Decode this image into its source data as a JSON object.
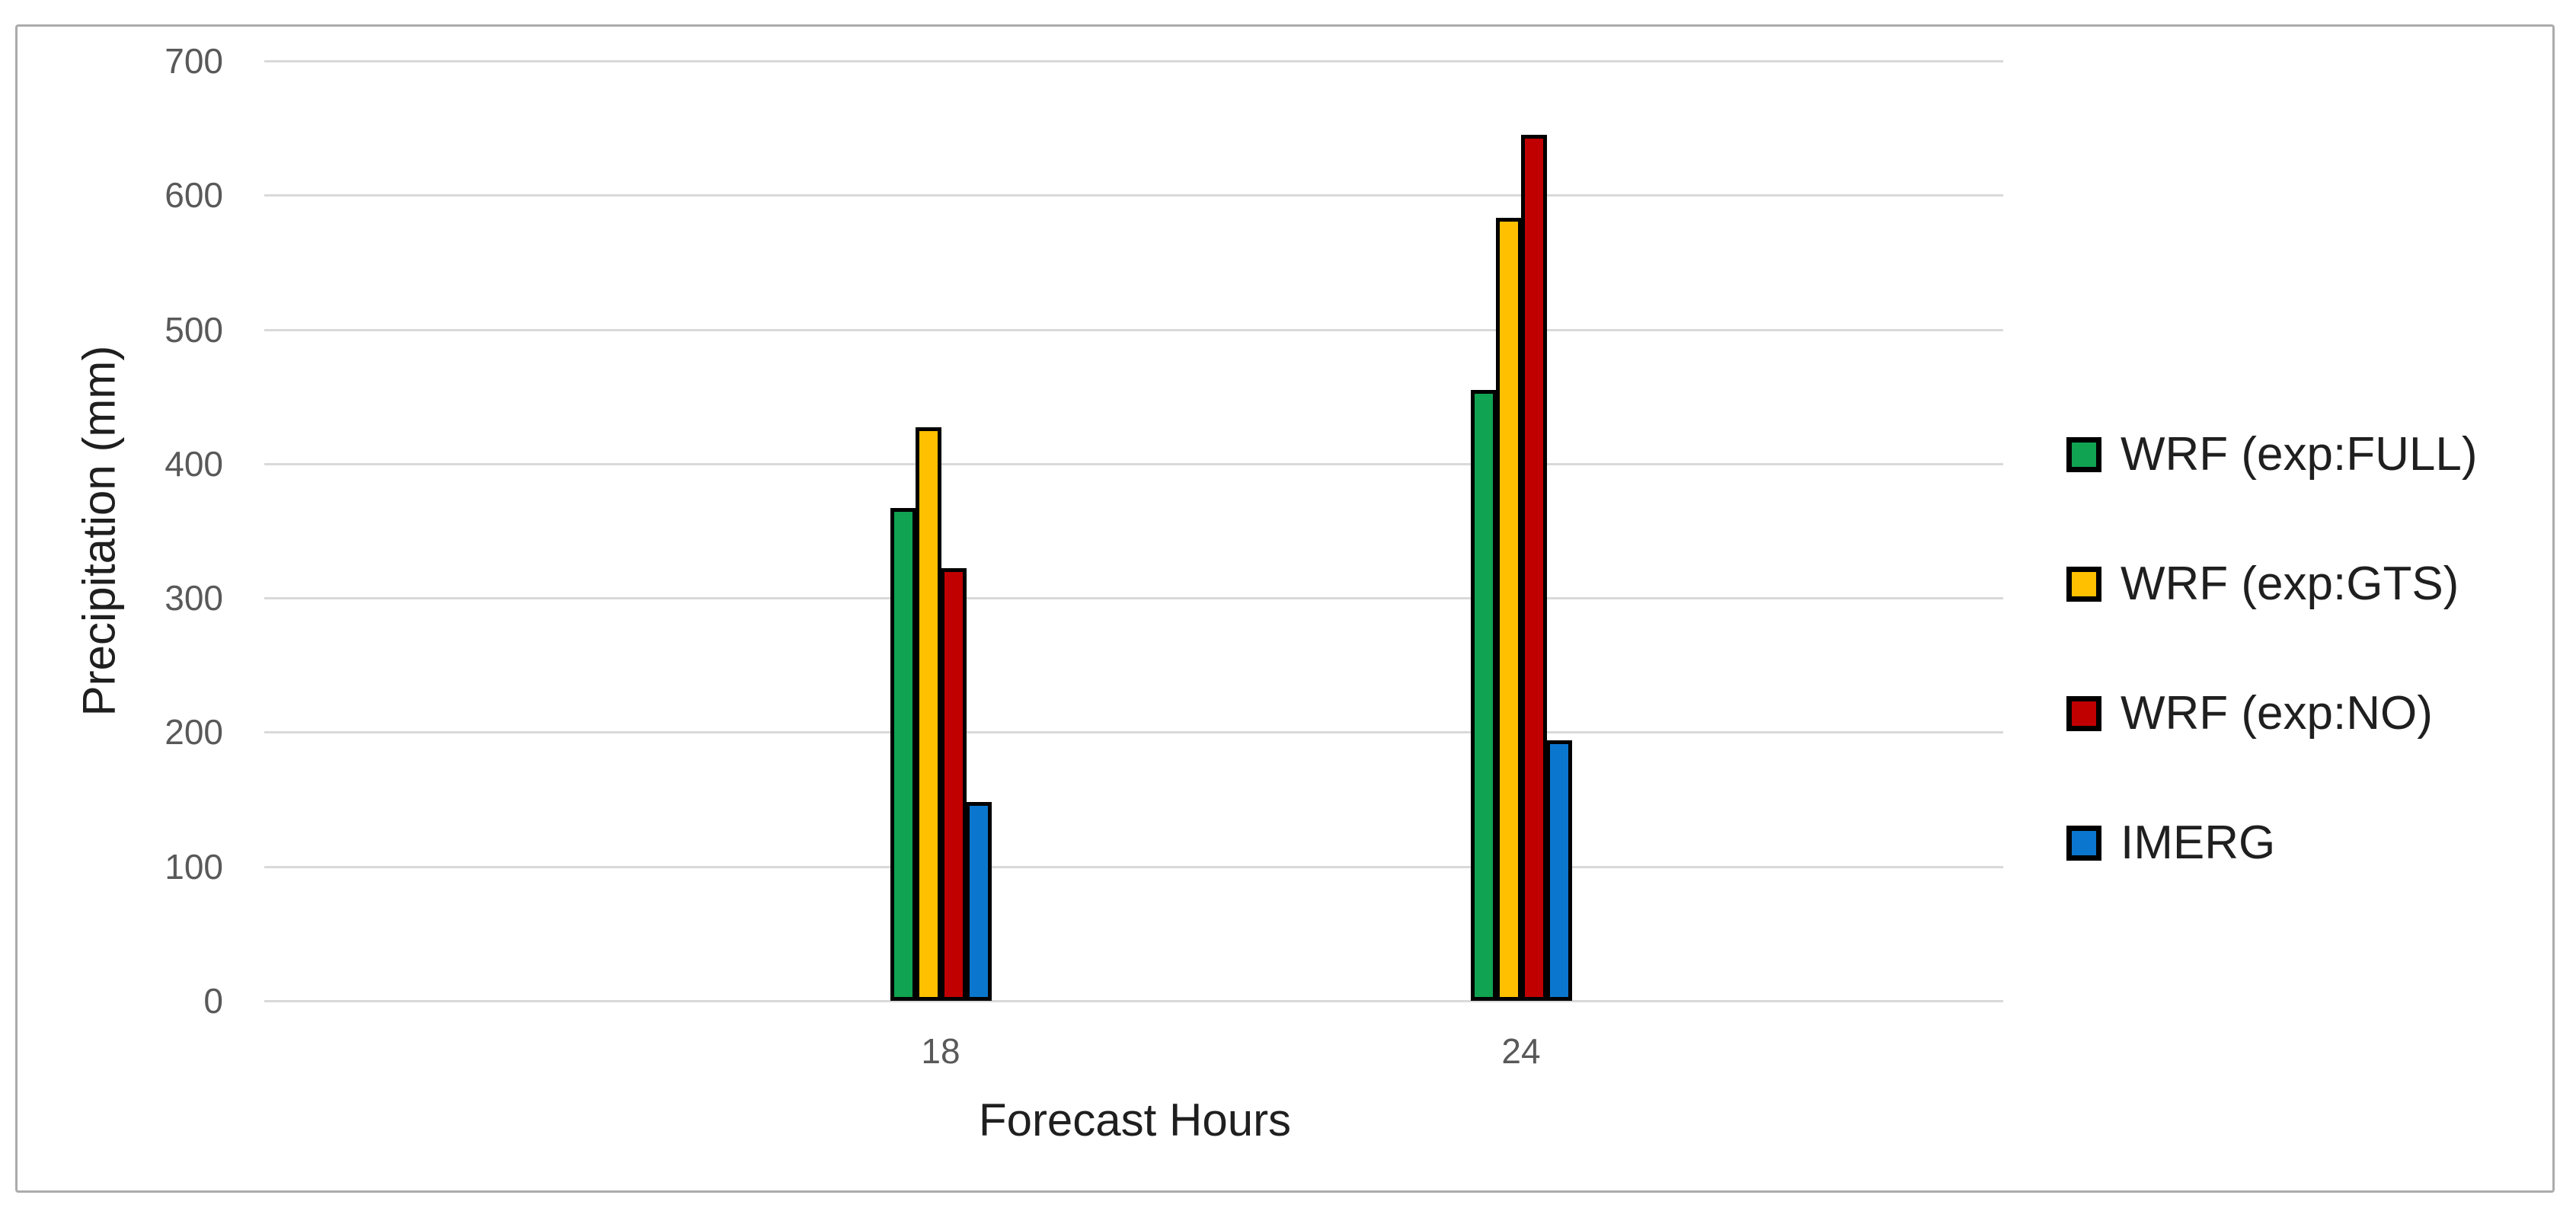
{
  "figure": {
    "background": "#FFFFFF",
    "frame_border_color": "#ABABAB"
  },
  "axis": {
    "tick_label_color": "#595959",
    "gridline_color": "#D9D9D9",
    "title_color": "#1F1F1F"
  },
  "chart_data": {
    "type": "bar",
    "categories": [
      "18",
      "24"
    ],
    "series": [
      {
        "name": "WRF (exp:FULL)",
        "color": "#10A351",
        "values": [
          367,
          455
        ]
      },
      {
        "name": "WRF (exp:GTS)",
        "color": "#FFC000",
        "values": [
          427,
          583
        ]
      },
      {
        "name": "WRF (exp:NO)",
        "color": "#C00000",
        "values": [
          322,
          645
        ]
      },
      {
        "name": "IMERG",
        "color": "#0B76CE",
        "values": [
          148,
          194
        ]
      }
    ],
    "xlabel": "Forecast Hours",
    "ylabel": "Precipitation (mm)",
    "ylim": [
      0,
      700
    ],
    "ytick_step": 100,
    "yticks": [
      "0",
      "100",
      "200",
      "300",
      "400",
      "500",
      "600",
      "700"
    ],
    "grid": true,
    "legend_position": "right",
    "bar_outline_color": "#000000"
  }
}
